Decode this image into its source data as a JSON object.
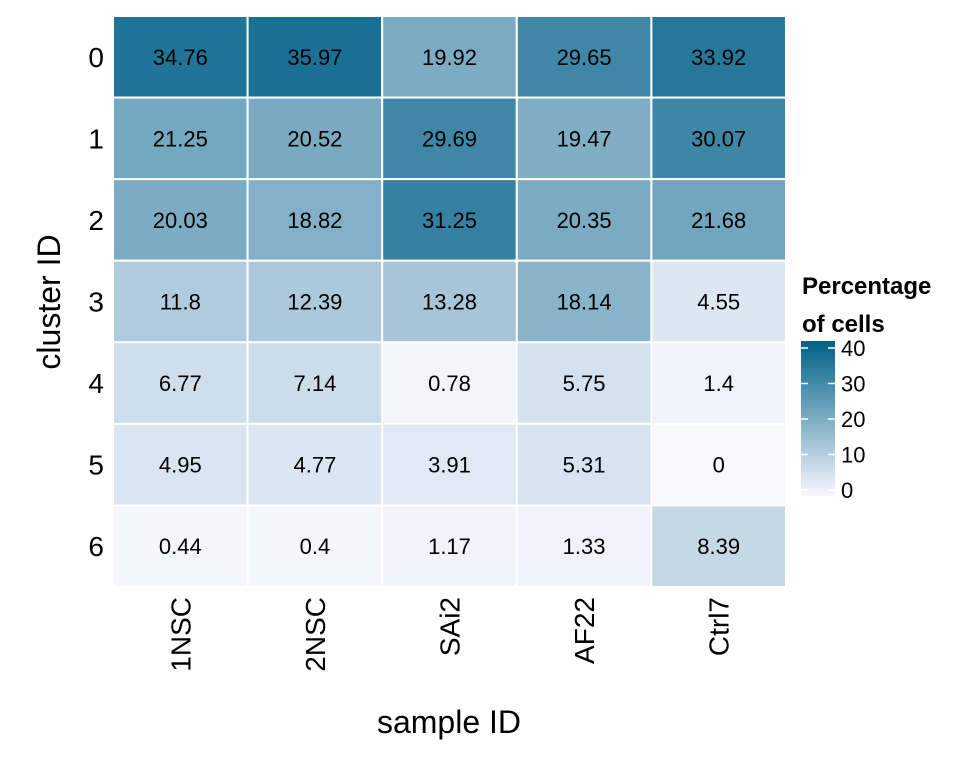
{
  "chart_data": {
    "type": "heatmap",
    "xlabel": "sample ID",
    "ylabel": "cluster ID",
    "x_categories": [
      "1NSC",
      "2NSC",
      "SAi2",
      "AF22",
      "Ctrl7"
    ],
    "y_categories": [
      "0",
      "1",
      "2",
      "3",
      "4",
      "5",
      "6"
    ],
    "values": [
      [
        "34.76",
        "35.97",
        "19.92",
        "29.65",
        "33.92"
      ],
      [
        "21.25",
        "20.52",
        "29.69",
        "19.47",
        "30.07"
      ],
      [
        "20.03",
        "18.82",
        "31.25",
        "20.35",
        "21.68"
      ],
      [
        "11.8",
        "12.39",
        "13.28",
        "18.14",
        "4.55"
      ],
      [
        "6.77",
        "7.14",
        "0.78",
        "5.75",
        "1.4"
      ],
      [
        "4.95",
        "4.77",
        "3.91",
        "5.31",
        "0"
      ],
      [
        "0.44",
        "0.4",
        "1.17",
        "1.33",
        "8.39"
      ]
    ],
    "legend": {
      "title_line1": "Percentage",
      "title_line2": "of cells",
      "ticks": [
        "0",
        "10",
        "20",
        "30",
        "40"
      ],
      "range": [
        0,
        40
      ],
      "low_color": "#f8f8ff",
      "high_color": "#006088",
      "placement": "right"
    }
  }
}
